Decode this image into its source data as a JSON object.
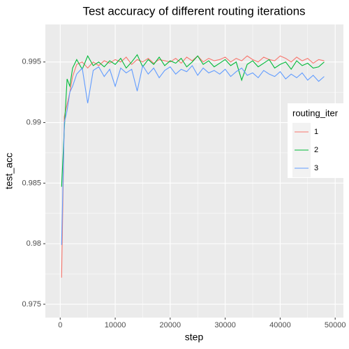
{
  "chart_data": {
    "type": "line",
    "title": "Test accuracy of different routing iterations",
    "x_label": "step",
    "y_label": "test_acc",
    "legend_title": "routing_iter",
    "legend_position": "right",
    "grid": true,
    "xlim": [
      -2700,
      51500
    ],
    "xticks": [
      0,
      10000,
      20000,
      30000,
      40000,
      50000
    ],
    "ylim": [
      0.9739,
      0.9981
    ],
    "yticks": [
      0.975,
      0.98,
      0.985,
      0.99,
      0.995
    ],
    "x": [
      250,
      750,
      1250,
      1750,
      2250,
      3000,
      4000,
      5000,
      6000,
      7000,
      8000,
      9000,
      10000,
      11000,
      12000,
      13000,
      14000,
      15000,
      16000,
      17000,
      18000,
      19000,
      20000,
      21000,
      22000,
      23000,
      24000,
      25000,
      26000,
      27000,
      28000,
      29000,
      30000,
      31000,
      32000,
      33000,
      34000,
      35000,
      36000,
      37000,
      38000,
      39000,
      40000,
      41000,
      42000,
      43000,
      44000,
      45000,
      46000,
      47000,
      48000
    ],
    "series": [
      {
        "name": "1",
        "color": "#F8766D",
        "values": [
          0.9772,
          0.9905,
          0.9915,
          0.9925,
          0.9938,
          0.9948,
          0.995,
          0.9945,
          0.995,
          0.9947,
          0.9951,
          0.9949,
          0.9952,
          0.995,
          0.9954,
          0.9948,
          0.9952,
          0.995,
          0.9953,
          0.9949,
          0.9952,
          0.9951,
          0.995,
          0.9953,
          0.9949,
          0.9954,
          0.9951,
          0.9955,
          0.995,
          0.9953,
          0.9951,
          0.9952,
          0.9954,
          0.995,
          0.9953,
          0.9951,
          0.9955,
          0.9952,
          0.995,
          0.9954,
          0.9952,
          0.9951,
          0.9955,
          0.9953,
          0.995,
          0.9954,
          0.9951,
          0.9953,
          0.9949,
          0.9952,
          0.9951
        ]
      },
      {
        "name": "2",
        "color": "#00BA38",
        "values": [
          0.9847,
          0.9895,
          0.9936,
          0.993,
          0.9945,
          0.9952,
          0.9944,
          0.9955,
          0.9947,
          0.995,
          0.9946,
          0.9951,
          0.9948,
          0.9953,
          0.9945,
          0.995,
          0.9956,
          0.9946,
          0.9952,
          0.9948,
          0.9954,
          0.9947,
          0.9951,
          0.9949,
          0.9953,
          0.9946,
          0.995,
          0.9955,
          0.9948,
          0.9951,
          0.9946,
          0.9949,
          0.9952,
          0.9947,
          0.995,
          0.9935,
          0.9948,
          0.9951,
          0.9946,
          0.9949,
          0.9952,
          0.9945,
          0.9948,
          0.995,
          0.9944,
          0.9951,
          0.9947,
          0.9949,
          0.9945,
          0.9946,
          0.995
        ]
      },
      {
        "name": "3",
        "color": "#619CFF",
        "values": [
          0.9799,
          0.99,
          0.991,
          0.9925,
          0.993,
          0.994,
          0.9945,
          0.9916,
          0.9943,
          0.9946,
          0.9938,
          0.9944,
          0.993,
          0.9945,
          0.9941,
          0.9944,
          0.9926,
          0.9947,
          0.994,
          0.9945,
          0.9937,
          0.9943,
          0.9946,
          0.994,
          0.9944,
          0.9942,
          0.9947,
          0.9939,
          0.9945,
          0.9941,
          0.9943,
          0.994,
          0.9944,
          0.9938,
          0.9942,
          0.9945,
          0.9939,
          0.9941,
          0.9937,
          0.9943,
          0.994,
          0.9938,
          0.9942,
          0.9936,
          0.994,
          0.9937,
          0.9941,
          0.9935,
          0.9939,
          0.9934,
          0.9938
        ]
      }
    ]
  }
}
